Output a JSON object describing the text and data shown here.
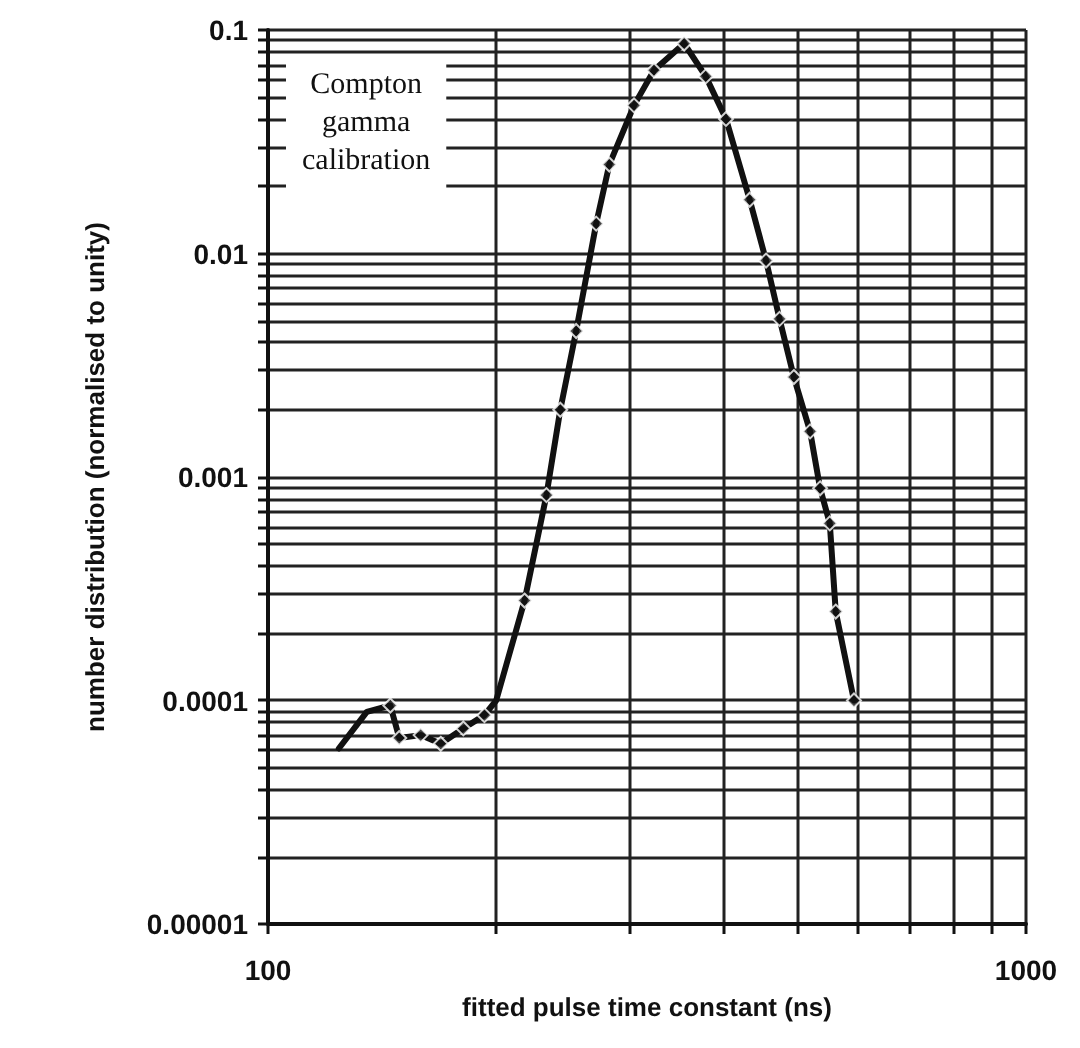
{
  "chart_data": {
    "type": "scatter",
    "xlabel": "fitted pulse time constant (ns)",
    "ylabel": "number distribution (normalised to unity)",
    "annotations": [
      "Compton gamma calibration"
    ],
    "log": "xy",
    "grid": true,
    "marker": "diamond",
    "xlim": [
      100,
      1000
    ],
    "xticks": [
      100,
      {
        "value": 200,
        "label": null
      },
      {
        "value": 300,
        "label": null
      },
      {
        "value": 400,
        "label": null
      },
      {
        "value": 500,
        "label": null
      },
      {
        "value": 600,
        "label": null
      },
      {
        "value": 700,
        "label": null
      },
      {
        "value": 800,
        "label": null
      },
      {
        "value": 900,
        "label": null
      },
      1000
    ],
    "ylim": [
      1e-05,
      0.1
    ],
    "yticks": [
      {
        "value": 1e-05,
        "label": "0.00001"
      },
      {
        "value": 2e-05,
        "label": null
      },
      {
        "value": 3e-05,
        "label": null
      },
      {
        "value": 4e-05,
        "label": null
      },
      {
        "value": 5e-05,
        "label": null
      },
      {
        "value": 6e-05,
        "label": null
      },
      {
        "value": 7e-05,
        "label": null
      },
      {
        "value": 8e-05,
        "label": null
      },
      {
        "value": 9e-05,
        "label": null
      },
      0.0001,
      {
        "value": 0.0002,
        "label": null
      },
      {
        "value": 0.0003,
        "label": null
      },
      {
        "value": 0.0004,
        "label": null
      },
      {
        "value": 0.0005,
        "label": null
      },
      {
        "value": 0.0006,
        "label": null
      },
      {
        "value": 0.0007,
        "label": null
      },
      {
        "value": 0.0008,
        "label": null
      },
      {
        "value": 0.0009,
        "label": null
      },
      0.001,
      {
        "value": 0.002,
        "label": null
      },
      {
        "value": 0.003,
        "label": null
      },
      {
        "value": 0.004,
        "label": null
      },
      {
        "value": 0.005,
        "label": null
      },
      {
        "value": 0.006,
        "label": null
      },
      {
        "value": 0.007,
        "label": null
      },
      {
        "value": 0.008,
        "label": null
      },
      {
        "value": 0.009,
        "label": null
      },
      0.01,
      {
        "value": 0.02,
        "label": null
      },
      {
        "value": 0.03,
        "label": null
      },
      {
        "value": 0.04,
        "label": null
      },
      {
        "value": 0.05,
        "label": null
      },
      {
        "value": 0.06,
        "label": null
      },
      {
        "value": 0.07,
        "label": null
      },
      {
        "value": 0.08,
        "label": null
      },
      {
        "value": 0.09,
        "label": null
      },
      0.1
    ],
    "series": [
      {
        "type": "line",
        "color": "#111111",
        "line_style": "solid",
        "marker": "none",
        "x": [
          124,
          135,
          145,
          149,
          159,
          169,
          181,
          193,
          200,
          218,
          233,
          243,
          255,
          271,
          282,
          304,
          323,
          354,
          378,
          402,
          432,
          454,
          473,
          494,
          519,
          535,
          551,
          561,
          593
        ],
        "values": [
          6.1e-05,
          8.9e-05,
          9.5e-05,
          6.8e-05,
          7e-05,
          6.4e-05,
          7.5e-05,
          8.6e-05,
          0.0001,
          0.00028,
          0.00083,
          0.002,
          0.0045,
          0.0136,
          0.025,
          0.046,
          0.066,
          0.087,
          0.062,
          0.04,
          0.0174,
          0.0093,
          0.0051,
          0.0028,
          0.0016,
          0.00089,
          0.00062,
          0.00025,
          0.0001
        ]
      },
      {
        "color": "#111111",
        "x": [
          145,
          149,
          159,
          169,
          181,
          193,
          218,
          233,
          243,
          255,
          271,
          282,
          304,
          323,
          354,
          378,
          402,
          432,
          454,
          473,
          494,
          519,
          535,
          551,
          561,
          593
        ],
        "values": [
          9.5e-05,
          6.8e-05,
          7e-05,
          6.4e-05,
          7.5e-05,
          8.6e-05,
          0.00028,
          0.00083,
          0.002,
          0.0045,
          0.0136,
          0.025,
          0.046,
          0.066,
          0.087,
          0.062,
          0.04,
          0.0174,
          0.0093,
          0.0051,
          0.0028,
          0.0016,
          0.00089,
          0.00062,
          0.00025,
          0.0001
        ]
      }
    ]
  }
}
